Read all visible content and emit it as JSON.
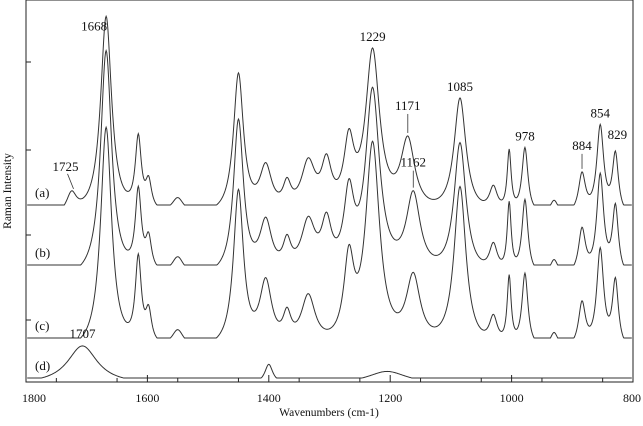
{
  "chart_data": {
    "type": "line",
    "xlabel": "Wavenumbers (cm-1)",
    "ylabel": "Raman Intensity",
    "xlim": [
      1800,
      800
    ],
    "x_reversed": true,
    "x_ticks": [
      "1800",
      "1600",
      "1400",
      "1200",
      "1000",
      "800"
    ],
    "x_tick_values": [
      1800,
      1600,
      1400,
      1200,
      1000,
      800
    ],
    "grid": false,
    "series": [
      {
        "name": "(a)",
        "peaks": [
          {
            "x": 1725,
            "h": 0.1,
            "w": 10
          },
          {
            "x": 1668,
            "h": 1.0,
            "w": 11
          },
          {
            "x": 1615,
            "h": 0.36,
            "w": 6
          },
          {
            "x": 1598,
            "h": 0.14,
            "w": 6
          },
          {
            "x": 1550,
            "h": 0.08,
            "w": 12
          },
          {
            "x": 1450,
            "h": 0.7,
            "w": 10
          },
          {
            "x": 1405,
            "h": 0.22,
            "w": 12
          },
          {
            "x": 1370,
            "h": 0.12,
            "w": 8
          },
          {
            "x": 1335,
            "h": 0.24,
            "w": 14
          },
          {
            "x": 1305,
            "h": 0.22,
            "w": 10
          },
          {
            "x": 1268,
            "h": 0.32,
            "w": 10
          },
          {
            "x": 1229,
            "h": 0.8,
            "w": 14
          },
          {
            "x": 1171,
            "h": 0.35,
            "w": 14
          },
          {
            "x": 1085,
            "h": 0.58,
            "w": 12
          },
          {
            "x": 1030,
            "h": 0.12,
            "w": 8
          },
          {
            "x": 1004,
            "h": 0.3,
            "w": 4
          },
          {
            "x": 978,
            "h": 0.33,
            "w": 6
          },
          {
            "x": 930,
            "h": 0.07,
            "w": 8
          },
          {
            "x": 884,
            "h": 0.2,
            "w": 7
          },
          {
            "x": 854,
            "h": 0.44,
            "w": 7
          },
          {
            "x": 829,
            "h": 0.3,
            "w": 6
          }
        ]
      },
      {
        "name": "(b)",
        "peaks": [
          {
            "x": 1668,
            "h": 1.0,
            "w": 11
          },
          {
            "x": 1615,
            "h": 0.35,
            "w": 6
          },
          {
            "x": 1598,
            "h": 0.14,
            "w": 6
          },
          {
            "x": 1550,
            "h": 0.08,
            "w": 12
          },
          {
            "x": 1450,
            "h": 0.68,
            "w": 10
          },
          {
            "x": 1405,
            "h": 0.22,
            "w": 12
          },
          {
            "x": 1370,
            "h": 0.12,
            "w": 8
          },
          {
            "x": 1335,
            "h": 0.22,
            "w": 14
          },
          {
            "x": 1305,
            "h": 0.2,
            "w": 10
          },
          {
            "x": 1268,
            "h": 0.32,
            "w": 10
          },
          {
            "x": 1229,
            "h": 0.8,
            "w": 14
          },
          {
            "x": 1162,
            "h": 0.34,
            "w": 14
          },
          {
            "x": 1085,
            "h": 0.58,
            "w": 12
          },
          {
            "x": 1030,
            "h": 0.12,
            "w": 8
          },
          {
            "x": 1004,
            "h": 0.3,
            "w": 4
          },
          {
            "x": 978,
            "h": 0.33,
            "w": 6
          },
          {
            "x": 930,
            "h": 0.07,
            "w": 8
          },
          {
            "x": 884,
            "h": 0.2,
            "w": 7
          },
          {
            "x": 854,
            "h": 0.44,
            "w": 7
          },
          {
            "x": 829,
            "h": 0.3,
            "w": 6
          }
        ]
      },
      {
        "name": "(c)",
        "peaks": [
          {
            "x": 1668,
            "h": 1.0,
            "w": 11
          },
          {
            "x": 1615,
            "h": 0.38,
            "w": 6
          },
          {
            "x": 1598,
            "h": 0.14,
            "w": 6
          },
          {
            "x": 1550,
            "h": 0.08,
            "w": 12
          },
          {
            "x": 1450,
            "h": 0.7,
            "w": 10
          },
          {
            "x": 1405,
            "h": 0.28,
            "w": 12
          },
          {
            "x": 1370,
            "h": 0.12,
            "w": 8
          },
          {
            "x": 1335,
            "h": 0.22,
            "w": 14
          },
          {
            "x": 1268,
            "h": 0.36,
            "w": 10
          },
          {
            "x": 1229,
            "h": 0.9,
            "w": 14
          },
          {
            "x": 1162,
            "h": 0.3,
            "w": 14
          },
          {
            "x": 1085,
            "h": 0.72,
            "w": 12
          },
          {
            "x": 1030,
            "h": 0.12,
            "w": 8
          },
          {
            "x": 1004,
            "h": 0.3,
            "w": 4
          },
          {
            "x": 978,
            "h": 0.33,
            "w": 6
          },
          {
            "x": 930,
            "h": 0.07,
            "w": 8
          },
          {
            "x": 884,
            "h": 0.2,
            "w": 7
          },
          {
            "x": 854,
            "h": 0.44,
            "w": 7
          },
          {
            "x": 829,
            "h": 0.3,
            "w": 6
          }
        ]
      },
      {
        "name": "(d)",
        "peaks": [
          {
            "x": 1707,
            "h": 0.12,
            "w": 30
          },
          {
            "x": 1400,
            "h": 0.06,
            "w": 8
          },
          {
            "x": 1205,
            "h": 0.04,
            "w": 40
          }
        ]
      }
    ],
    "annotations": [
      {
        "text": "1668",
        "x": 1668,
        "series": 0
      },
      {
        "text": "1725",
        "x": 1725,
        "series": 0
      },
      {
        "text": "1229",
        "x": 1229,
        "series": 0
      },
      {
        "text": "1171",
        "x": 1171,
        "series": 0
      },
      {
        "text": "1085",
        "x": 1085,
        "series": 0
      },
      {
        "text": "978",
        "x": 978,
        "series": 0
      },
      {
        "text": "884",
        "x": 884,
        "series": 0
      },
      {
        "text": "854",
        "x": 854,
        "series": 0
      },
      {
        "text": "829",
        "x": 829,
        "series": 0
      },
      {
        "text": "1162",
        "x": 1162,
        "series": 1
      },
      {
        "text": "1707",
        "x": 1707,
        "series": 3
      }
    ]
  }
}
